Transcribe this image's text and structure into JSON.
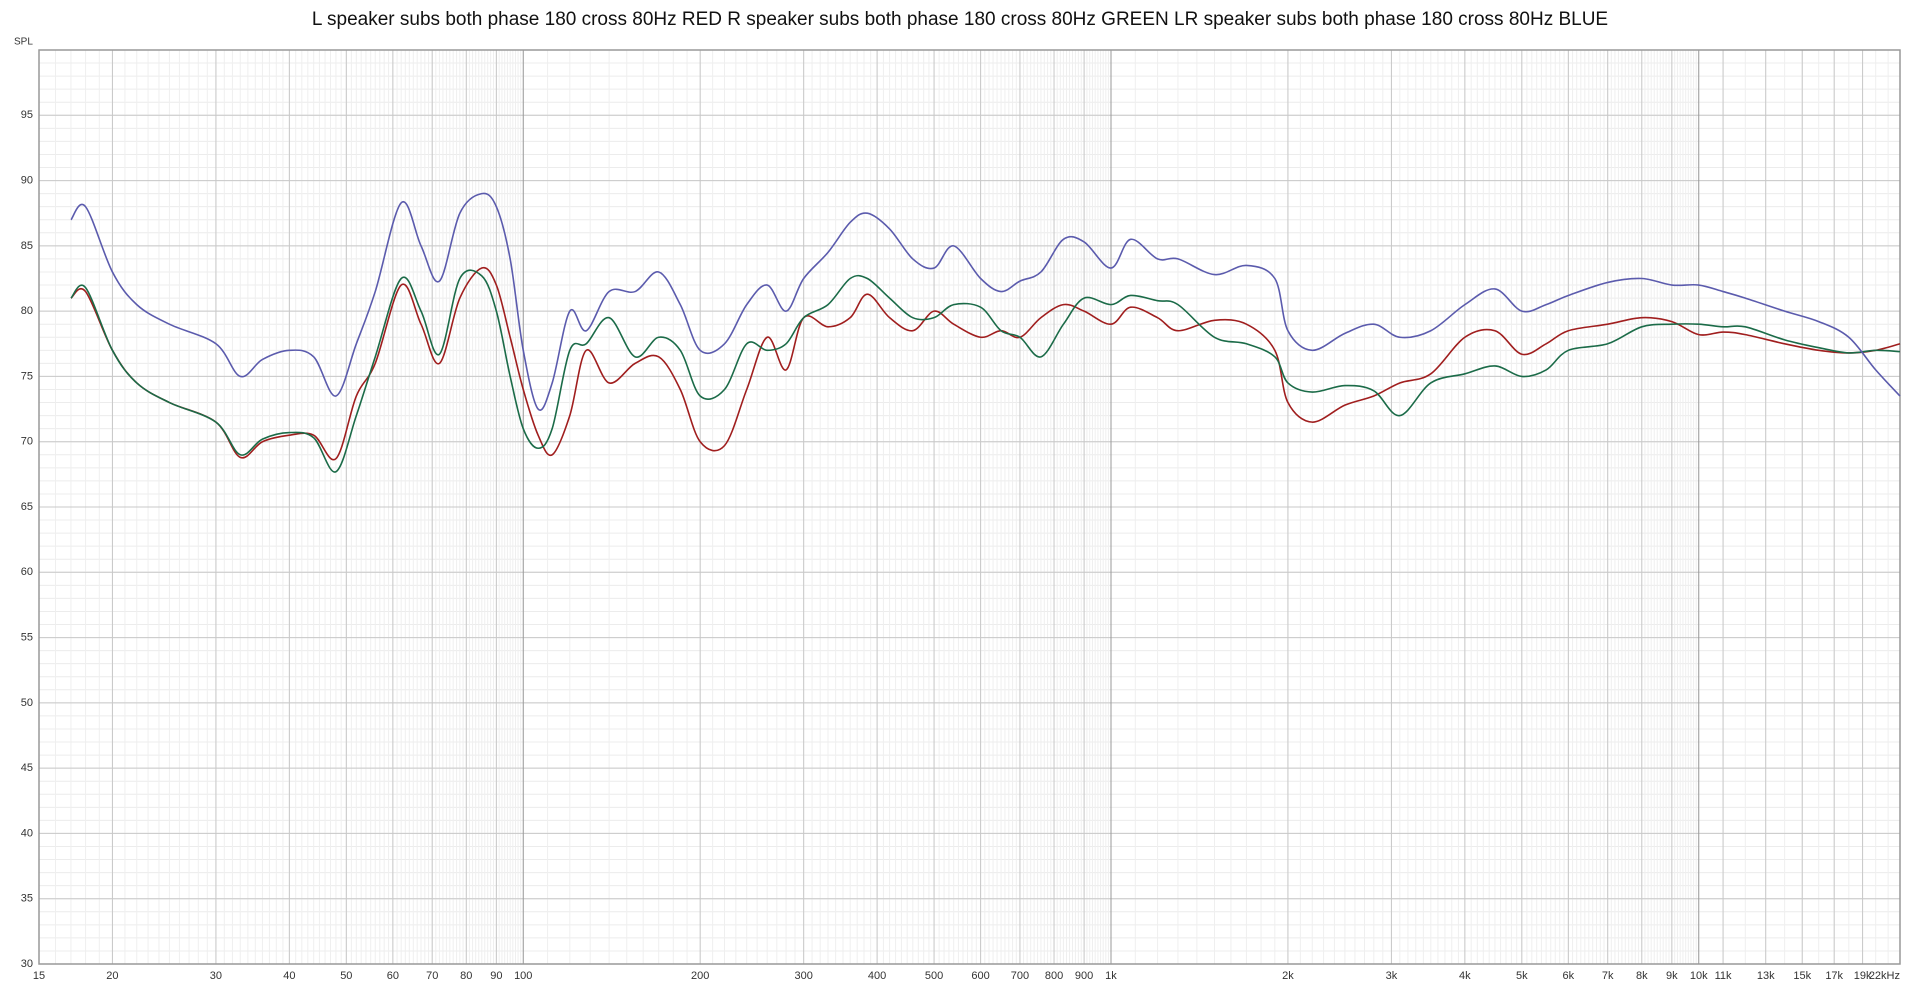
{
  "chart_data": {
    "type": "line",
    "title": "L speaker subs both phase 180 cross 80Hz RED R speaker subs both phase 180 cross 80Hz GREEN LR speaker subs both phase 180 cross 80Hz BLUE",
    "y_label": "SPL",
    "log_x": true,
    "grid": true,
    "x": [
      17,
      18,
      20,
      22,
      25,
      30,
      33,
      36,
      40,
      44,
      48,
      52,
      56,
      62,
      67,
      72,
      78,
      85,
      90,
      95,
      100,
      106,
      112,
      120,
      128,
      140,
      155,
      170,
      185,
      200,
      220,
      240,
      260,
      280,
      300,
      330,
      360,
      385,
      420,
      460,
      500,
      540,
      600,
      650,
      700,
      760,
      830,
      900,
      1000,
      1080,
      1200,
      1300,
      1500,
      1700,
      1900,
      2000,
      2200,
      2500,
      2800,
      3100,
      3500,
      4000,
      4500,
      5000,
      5500,
      6000,
      7000,
      8000,
      9000,
      10000,
      11000,
      12000,
      14000,
      16000,
      18000,
      20000,
      22000
    ],
    "series": [
      {
        "color": "#a01e1e",
        "values": [
          81,
          81.5,
          77,
          74.5,
          73,
          71.5,
          68.8,
          70,
          70.5,
          70.5,
          68.7,
          73.5,
          76,
          82,
          79,
          76,
          81,
          83.3,
          82,
          78,
          74,
          70.5,
          69,
          72,
          77,
          74.5,
          76,
          76.5,
          74,
          70,
          69.7,
          74,
          78,
          75.5,
          79.5,
          78.8,
          79.5,
          81.3,
          79.5,
          78.5,
          80,
          79,
          78,
          78.5,
          78,
          79.5,
          80.5,
          80,
          79,
          80.3,
          79.5,
          78.5,
          79.3,
          79,
          77,
          73,
          71.5,
          72.8,
          73.5,
          74.5,
          75.2,
          78,
          78.5,
          76.7,
          77.5,
          78.5,
          79,
          79.5,
          79.2,
          78.2,
          78.4,
          78.2,
          77.5,
          77,
          76.8,
          77,
          77.5
        ]
      },
      {
        "color": "#1b6b48",
        "values": [
          81,
          81.8,
          77,
          74.5,
          73,
          71.5,
          69,
          70.2,
          70.7,
          70.3,
          67.7,
          72,
          76.5,
          82.5,
          80,
          76.7,
          82.5,
          82.7,
          80,
          75,
          71,
          69.5,
          71,
          77,
          77.5,
          79.5,
          76.5,
          78,
          77,
          73.5,
          74,
          77.5,
          77,
          77.5,
          79.5,
          80.5,
          82.5,
          82.5,
          81,
          79.5,
          79.5,
          80.5,
          80.3,
          78.5,
          78,
          76.5,
          79,
          81,
          80.5,
          81.2,
          80.8,
          80.5,
          78,
          77.5,
          76.5,
          74.5,
          73.8,
          74.3,
          73.9,
          72,
          74.5,
          75.2,
          75.8,
          75,
          75.5,
          77,
          77.5,
          78.8,
          79,
          79,
          78.8,
          78.8,
          77.8,
          77.2,
          76.8,
          77,
          76.9
        ]
      },
      {
        "color": "#5b5bad",
        "values": [
          87,
          88,
          83,
          80.5,
          79,
          77.5,
          75,
          76.3,
          77,
          76.5,
          73.5,
          77.5,
          81.5,
          88.3,
          85,
          82.3,
          87.5,
          89,
          88,
          84,
          77,
          72.5,
          74.5,
          80,
          78.5,
          81.5,
          81.5,
          83,
          80.5,
          77,
          77.5,
          80.5,
          82,
          80,
          82.5,
          84.5,
          86.8,
          87.5,
          86.3,
          84,
          83.3,
          85,
          82.5,
          81.5,
          82.3,
          83,
          85.5,
          85.3,
          83.3,
          85.5,
          84,
          84,
          82.8,
          83.5,
          82.5,
          78.5,
          77,
          78.3,
          79,
          78,
          78.5,
          80.5,
          81.7,
          80,
          80.5,
          81.2,
          82.2,
          82.5,
          82,
          82,
          81.5,
          81,
          80,
          79.2,
          78,
          75.5,
          73.5
        ]
      }
    ],
    "xlim": [
      15,
      22000
    ],
    "ylim": [
      30,
      100
    ],
    "yticks": [
      30,
      35,
      40,
      45,
      50,
      55,
      60,
      65,
      70,
      75,
      80,
      85,
      90,
      95
    ],
    "xticks": [
      15,
      20,
      30,
      40,
      50,
      60,
      70,
      80,
      90,
      100,
      200,
      300,
      400,
      500,
      600,
      700,
      800,
      900,
      {
        "value": 1000,
        "label": "1k"
      },
      {
        "value": 2000,
        "label": "2k"
      },
      {
        "value": 3000,
        "label": "3k"
      },
      {
        "value": 4000,
        "label": "4k"
      },
      {
        "value": 5000,
        "label": "5k"
      },
      {
        "value": 6000,
        "label": "6k"
      },
      {
        "value": 7000,
        "label": "7k"
      },
      {
        "value": 8000,
        "label": "8k"
      },
      {
        "value": 9000,
        "label": "9k"
      },
      {
        "value": 10000,
        "label": "10k"
      },
      {
        "value": 11000,
        "label": "11k"
      },
      {
        "value": 13000,
        "label": "13k"
      },
      {
        "value": 15000,
        "label": "15k"
      },
      {
        "value": 17000,
        "label": "17k"
      },
      {
        "value": 19000,
        "label": "19k"
      },
      {
        "value": 22000,
        "label": "22kHz"
      }
    ]
  }
}
